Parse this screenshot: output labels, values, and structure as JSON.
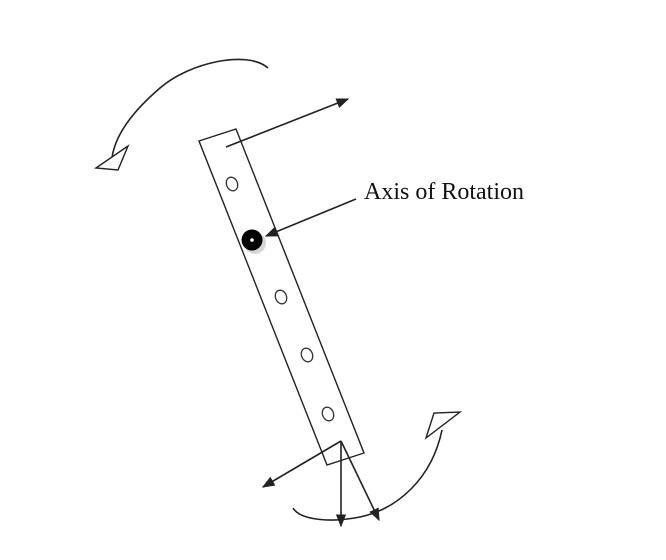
{
  "diagram": {
    "labels": {
      "axis_of_rotation": "Axis of Rotation"
    },
    "colors": {
      "stroke": "#222222",
      "pivot_fill": "#000000",
      "background": "#ffffff"
    }
  }
}
